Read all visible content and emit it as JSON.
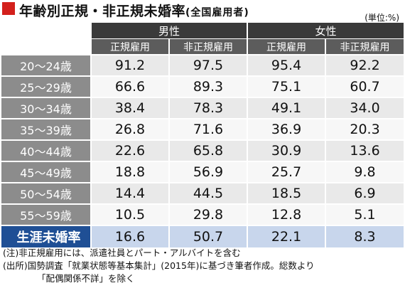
{
  "title": {
    "main": "年齢別正規・非正規未婚率",
    "sub": "(全国雇用者)"
  },
  "unit": "(単位:%)",
  "colors": {
    "accent": "#d3201c",
    "highlight_row": "#1f4f95"
  },
  "table": {
    "groups": [
      "男性",
      "女性"
    ],
    "subheaders": [
      "正規雇用",
      "非正規雇用",
      "正規雇用",
      "非正規雇用"
    ],
    "rows": [
      {
        "label": "20〜24歳",
        "values": [
          "91.2",
          "97.5",
          "95.4",
          "92.2"
        ]
      },
      {
        "label": "25〜29歳",
        "values": [
          "66.6",
          "89.3",
          "75.1",
          "60.7"
        ]
      },
      {
        "label": "30〜34歳",
        "values": [
          "38.4",
          "78.3",
          "49.1",
          "34.0"
        ]
      },
      {
        "label": "35〜39歳",
        "values": [
          "26.8",
          "71.6",
          "36.9",
          "20.3"
        ]
      },
      {
        "label": "40〜44歳",
        "values": [
          "22.6",
          "65.8",
          "30.9",
          "13.6"
        ]
      },
      {
        "label": "45〜49歳",
        "values": [
          "18.8",
          "56.9",
          "25.7",
          "9.8"
        ]
      },
      {
        "label": "50〜54歳",
        "values": [
          "14.4",
          "44.5",
          "18.5",
          "6.9"
        ]
      },
      {
        "label": "55〜59歳",
        "values": [
          "10.5",
          "29.8",
          "12.8",
          "5.1"
        ]
      }
    ],
    "lifetime": {
      "label": "生涯未婚率",
      "values": [
        "16.6",
        "50.7",
        "22.1",
        "8.3"
      ]
    }
  },
  "notes": {
    "note1": "(注)非正規雇用には、派遣社員とパート・アルバイトを含む",
    "source_line1": "(出所)国勢調査「就業状態等基本集計」(2015年)に基づき筆者作成。総数より",
    "source_line2": "「配偶関係不詳」を除く"
  }
}
